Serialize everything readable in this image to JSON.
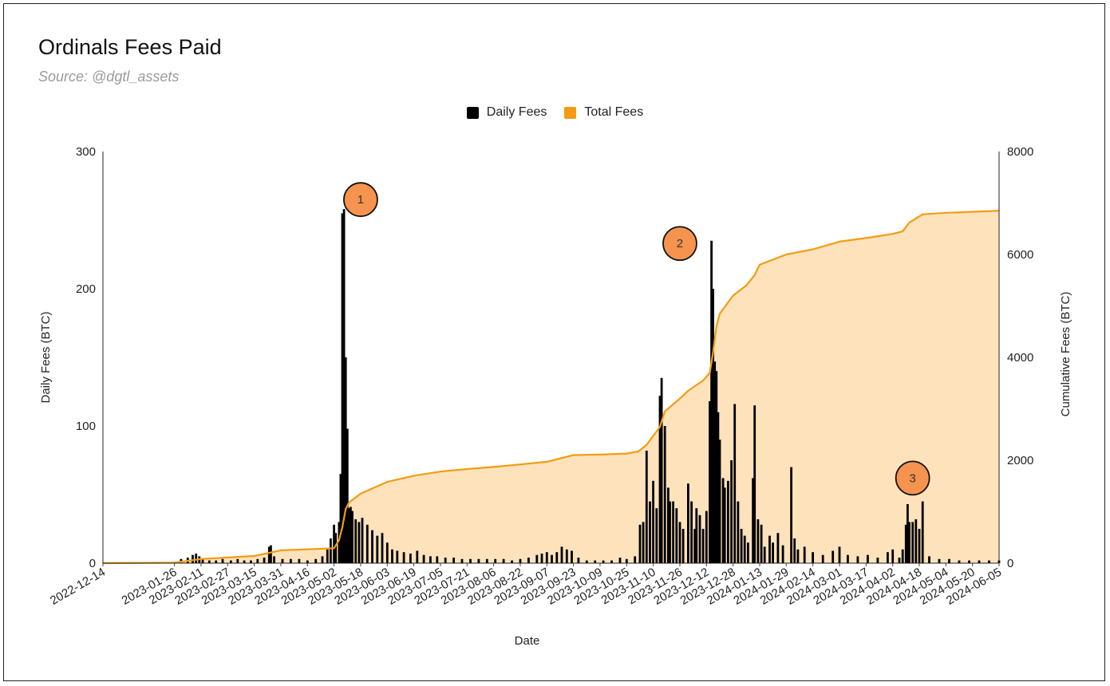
{
  "title": "Ordinals Fees Paid",
  "subtitle": "Source: @dgtl_assets",
  "colors": {
    "daily": "#000000",
    "total_line": "#f39c12",
    "total_fill": "#fde2bc",
    "annotation": "#f5934f"
  },
  "chart_data": {
    "type": "bar+area",
    "title": "Ordinals Fees Paid",
    "subtitle": "Source: @dgtl_assets",
    "xlabel": "Date",
    "ylabel_left": "Daily Fees (BTC)",
    "ylabel_right": "Cumulative Fees (BTC)",
    "ylim_left": [
      0,
      300
    ],
    "ylim_right": [
      0,
      8000
    ],
    "yticks_left": [
      "0",
      "100",
      "200",
      "300"
    ],
    "yticks_right": [
      "0",
      "2000",
      "4000",
      "6000",
      "8000"
    ],
    "legend": {
      "placement": "top-center",
      "entries": [
        "Daily Fees",
        "Total Fees"
      ]
    },
    "grid": false,
    "x_ticks": [
      "2022-12-14",
      "2023-01-26",
      "2023-02-11",
      "2023-02-27",
      "2023-03-15",
      "2023-03-31",
      "2023-04-16",
      "2023-05-02",
      "2023-05-18",
      "2023-06-03",
      "2023-06-19",
      "2023-07-05",
      "2023-07-21",
      "2023-08-06",
      "2023-08-22",
      "2023-09-07",
      "2023-09-23",
      "2023-10-09",
      "2023-10-25",
      "2023-11-10",
      "2023-11-26",
      "2023-12-12",
      "2023-12-28",
      "2024-01-13",
      "2024-01-29",
      "2024-02-14",
      "2024-03-01",
      "2024-03-17",
      "2024-04-02",
      "2024-04-18",
      "2024-05-04",
      "2024-05-20",
      "2024-06-05"
    ],
    "series": [
      {
        "name": "Daily Fees",
        "type": "bar",
        "points": [
          [
            "2023-01-26",
            1
          ],
          [
            "2023-01-30",
            3
          ],
          [
            "2023-02-03",
            4
          ],
          [
            "2023-02-06",
            6
          ],
          [
            "2023-02-08",
            7
          ],
          [
            "2023-02-10",
            5
          ],
          [
            "2023-02-12",
            3
          ],
          [
            "2023-02-16",
            2
          ],
          [
            "2023-02-20",
            2
          ],
          [
            "2023-02-24",
            3
          ],
          [
            "2023-03-01",
            2
          ],
          [
            "2023-03-05",
            3
          ],
          [
            "2023-03-09",
            2
          ],
          [
            "2023-03-13",
            2
          ],
          [
            "2023-03-17",
            3
          ],
          [
            "2023-03-21",
            4
          ],
          [
            "2023-03-24",
            12
          ],
          [
            "2023-03-25",
            13
          ],
          [
            "2023-03-27",
            5
          ],
          [
            "2023-04-01",
            3
          ],
          [
            "2023-04-06",
            3
          ],
          [
            "2023-04-11",
            3
          ],
          [
            "2023-04-16",
            2
          ],
          [
            "2023-04-21",
            3
          ],
          [
            "2023-04-25",
            5
          ],
          [
            "2023-04-28",
            10
          ],
          [
            "2023-04-30",
            18
          ],
          [
            "2023-05-02",
            28
          ],
          [
            "2023-05-03",
            22
          ],
          [
            "2023-05-05",
            30
          ],
          [
            "2023-05-06",
            65
          ],
          [
            "2023-05-07",
            255
          ],
          [
            "2023-05-08",
            258
          ],
          [
            "2023-05-09",
            150
          ],
          [
            "2023-05-10",
            98
          ],
          [
            "2023-05-11",
            40
          ],
          [
            "2023-05-12",
            41
          ],
          [
            "2023-05-13",
            38
          ],
          [
            "2023-05-15",
            32
          ],
          [
            "2023-05-17",
            30
          ],
          [
            "2023-05-19",
            33
          ],
          [
            "2023-05-22",
            28
          ],
          [
            "2023-05-25",
            24
          ],
          [
            "2023-05-28",
            20
          ],
          [
            "2023-05-31",
            22
          ],
          [
            "2023-06-03",
            15
          ],
          [
            "2023-06-06",
            10
          ],
          [
            "2023-06-09",
            9
          ],
          [
            "2023-06-13",
            8
          ],
          [
            "2023-06-17",
            7
          ],
          [
            "2023-06-21",
            9
          ],
          [
            "2023-06-25",
            6
          ],
          [
            "2023-06-29",
            5
          ],
          [
            "2023-07-03",
            5
          ],
          [
            "2023-07-08",
            4
          ],
          [
            "2023-07-13",
            4
          ],
          [
            "2023-07-18",
            3
          ],
          [
            "2023-07-23",
            3
          ],
          [
            "2023-07-28",
            3
          ],
          [
            "2023-08-02",
            3
          ],
          [
            "2023-08-07",
            3
          ],
          [
            "2023-08-12",
            3
          ],
          [
            "2023-08-17",
            2
          ],
          [
            "2023-08-22",
            3
          ],
          [
            "2023-08-27",
            4
          ],
          [
            "2023-09-01",
            6
          ],
          [
            "2023-09-04",
            7
          ],
          [
            "2023-09-07",
            8
          ],
          [
            "2023-09-10",
            6
          ],
          [
            "2023-09-13",
            8
          ],
          [
            "2023-09-16",
            12
          ],
          [
            "2023-09-19",
            10
          ],
          [
            "2023-09-22",
            9
          ],
          [
            "2023-09-26",
            4
          ],
          [
            "2023-10-01",
            2
          ],
          [
            "2023-10-06",
            2
          ],
          [
            "2023-10-11",
            2
          ],
          [
            "2023-10-16",
            2
          ],
          [
            "2023-10-21",
            4
          ],
          [
            "2023-10-25",
            3
          ],
          [
            "2023-10-30",
            5
          ],
          [
            "2023-11-02",
            28
          ],
          [
            "2023-11-04",
            30
          ],
          [
            "2023-11-06",
            82
          ],
          [
            "2023-11-08",
            45
          ],
          [
            "2023-11-10",
            60
          ],
          [
            "2023-11-12",
            40
          ],
          [
            "2023-11-14",
            122
          ],
          [
            "2023-11-15",
            135
          ],
          [
            "2023-11-17",
            100
          ],
          [
            "2023-11-19",
            55
          ],
          [
            "2023-11-20",
            45
          ],
          [
            "2023-11-22",
            45
          ],
          [
            "2023-11-24",
            40
          ],
          [
            "2023-11-26",
            30
          ],
          [
            "2023-11-28",
            25
          ],
          [
            "2023-12-01",
            58
          ],
          [
            "2023-12-03",
            45
          ],
          [
            "2023-12-05",
            25
          ],
          [
            "2023-12-06",
            40
          ],
          [
            "2023-12-08",
            35
          ],
          [
            "2023-12-10",
            25
          ],
          [
            "2023-12-12",
            38
          ],
          [
            "2023-12-14",
            118
          ],
          [
            "2023-12-15",
            235
          ],
          [
            "2023-12-16",
            200
          ],
          [
            "2023-12-17",
            147
          ],
          [
            "2023-12-18",
            140
          ],
          [
            "2023-12-19",
            110
          ],
          [
            "2023-12-20",
            90
          ],
          [
            "2023-12-22",
            62
          ],
          [
            "2023-12-23",
            55
          ],
          [
            "2023-12-25",
            60
          ],
          [
            "2023-12-27",
            75
          ],
          [
            "2023-12-29",
            116
          ],
          [
            "2023-12-31",
            45
          ],
          [
            "2024-01-02",
            25
          ],
          [
            "2024-01-04",
            20
          ],
          [
            "2024-01-06",
            15
          ],
          [
            "2024-01-09",
            62
          ],
          [
            "2024-01-10",
            115
          ],
          [
            "2024-01-12",
            32
          ],
          [
            "2024-01-14",
            28
          ],
          [
            "2024-01-16",
            12
          ],
          [
            "2024-01-19",
            20
          ],
          [
            "2024-01-21",
            15
          ],
          [
            "2024-01-24",
            22
          ],
          [
            "2024-01-27",
            13
          ],
          [
            "2024-02-01",
            70
          ],
          [
            "2024-02-03",
            18
          ],
          [
            "2024-02-05",
            10
          ],
          [
            "2024-02-09",
            12
          ],
          [
            "2024-02-14",
            8
          ],
          [
            "2024-02-20",
            6
          ],
          [
            "2024-02-26",
            9
          ],
          [
            "2024-03-01",
            12
          ],
          [
            "2024-03-06",
            6
          ],
          [
            "2024-03-12",
            5
          ],
          [
            "2024-03-18",
            6
          ],
          [
            "2024-03-24",
            4
          ],
          [
            "2024-03-30",
            8
          ],
          [
            "2024-04-02",
            10
          ],
          [
            "2024-04-06",
            4
          ],
          [
            "2024-04-08",
            10
          ],
          [
            "2024-04-10",
            28
          ],
          [
            "2024-04-11",
            43
          ],
          [
            "2024-04-12",
            30
          ],
          [
            "2024-04-14",
            30
          ],
          [
            "2024-04-16",
            32
          ],
          [
            "2024-04-18",
            25
          ],
          [
            "2024-04-20",
            45
          ],
          [
            "2024-04-24",
            5
          ],
          [
            "2024-04-30",
            3
          ],
          [
            "2024-05-06",
            3
          ],
          [
            "2024-05-12",
            2
          ],
          [
            "2024-05-18",
            2
          ],
          [
            "2024-05-24",
            2
          ],
          [
            "2024-05-30",
            2
          ],
          [
            "2024-06-05",
            2
          ]
        ]
      },
      {
        "name": "Total Fees",
        "type": "area",
        "points": [
          [
            "2022-12-14",
            0
          ],
          [
            "2023-01-26",
            10
          ],
          [
            "2023-02-11",
            80
          ],
          [
            "2023-02-27",
            110
          ],
          [
            "2023-03-15",
            140
          ],
          [
            "2023-03-24",
            200
          ],
          [
            "2023-03-31",
            250
          ],
          [
            "2023-04-16",
            270
          ],
          [
            "2023-05-02",
            290
          ],
          [
            "2023-05-05",
            450
          ],
          [
            "2023-05-07",
            700
          ],
          [
            "2023-05-09",
            1050
          ],
          [
            "2023-05-11",
            1180
          ],
          [
            "2023-05-18",
            1350
          ],
          [
            "2023-06-03",
            1580
          ],
          [
            "2023-06-19",
            1700
          ],
          [
            "2023-07-05",
            1780
          ],
          [
            "2023-07-21",
            1830
          ],
          [
            "2023-08-06",
            1870
          ],
          [
            "2023-08-22",
            1920
          ],
          [
            "2023-09-07",
            1970
          ],
          [
            "2023-09-23",
            2100
          ],
          [
            "2023-10-09",
            2110
          ],
          [
            "2023-10-25",
            2130
          ],
          [
            "2023-11-01",
            2170
          ],
          [
            "2023-11-06",
            2300
          ],
          [
            "2023-11-14",
            2650
          ],
          [
            "2023-11-17",
            2950
          ],
          [
            "2023-11-26",
            3200
          ],
          [
            "2023-12-01",
            3350
          ],
          [
            "2023-12-10",
            3550
          ],
          [
            "2023-12-14",
            3700
          ],
          [
            "2023-12-16",
            4100
          ],
          [
            "2023-12-18",
            4600
          ],
          [
            "2023-12-20",
            4850
          ],
          [
            "2023-12-28",
            5200
          ],
          [
            "2024-01-05",
            5400
          ],
          [
            "2024-01-10",
            5600
          ],
          [
            "2024-01-13",
            5800
          ],
          [
            "2024-01-29",
            6000
          ],
          [
            "2024-02-14",
            6100
          ],
          [
            "2024-03-01",
            6250
          ],
          [
            "2024-03-17",
            6320
          ],
          [
            "2024-04-02",
            6400
          ],
          [
            "2024-04-08",
            6450
          ],
          [
            "2024-04-12",
            6620
          ],
          [
            "2024-04-20",
            6780
          ],
          [
            "2024-05-04",
            6810
          ],
          [
            "2024-05-20",
            6830
          ],
          [
            "2024-06-05",
            6850
          ]
        ]
      }
    ],
    "annotations": [
      "1",
      "2",
      "3"
    ]
  }
}
